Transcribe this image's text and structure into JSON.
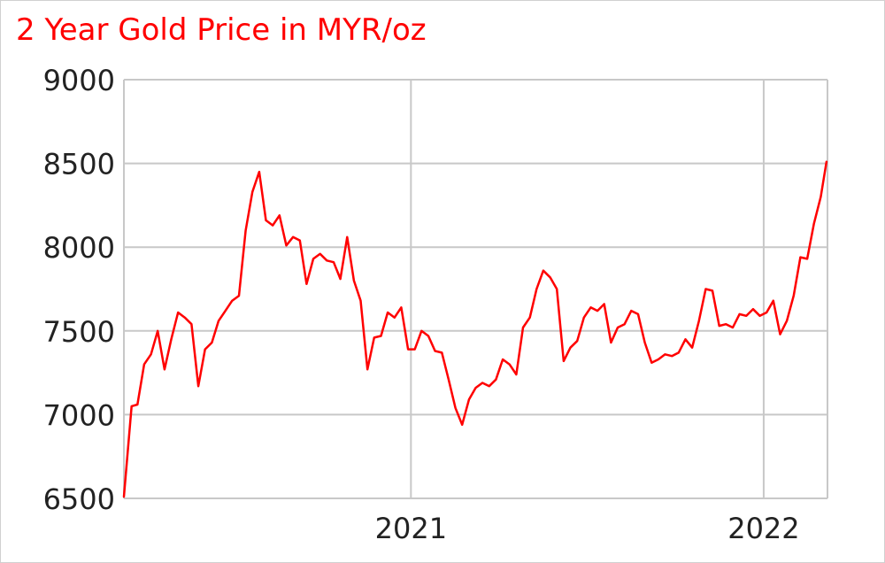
{
  "chart_data": {
    "type": "line",
    "title": "2 Year Gold Price in MYR/oz",
    "xlabel": "",
    "ylabel": "",
    "ylim": [
      6500,
      9000
    ],
    "yticks": [
      "6500",
      "7000",
      "7500",
      "8000",
      "8500",
      "9000"
    ],
    "xticks": [
      {
        "label": "2021",
        "value": "2021-01-01"
      },
      {
        "label": "2022",
        "value": "2022-01-01"
      }
    ],
    "xlim": [
      "2020-03-10",
      "2022-03-08"
    ],
    "grid": true,
    "color": "#ff0000",
    "series": [
      {
        "name": "",
        "x": [
          "2020-03-10",
          "2020-03-18",
          "2020-03-24",
          "2020-03-31",
          "2020-04-07",
          "2020-04-14",
          "2020-04-21",
          "2020-04-28",
          "2020-05-05",
          "2020-05-12",
          "2020-05-19",
          "2020-05-26",
          "2020-06-02",
          "2020-06-09",
          "2020-06-16",
          "2020-06-23",
          "2020-06-30",
          "2020-07-07",
          "2020-07-14",
          "2020-07-21",
          "2020-07-28",
          "2020-08-04",
          "2020-08-11",
          "2020-08-18",
          "2020-08-25",
          "2020-09-01",
          "2020-09-08",
          "2020-09-15",
          "2020-09-22",
          "2020-09-29",
          "2020-10-06",
          "2020-10-13",
          "2020-10-20",
          "2020-10-27",
          "2020-11-03",
          "2020-11-10",
          "2020-11-17",
          "2020-11-24",
          "2020-12-01",
          "2020-12-08",
          "2020-12-15",
          "2020-12-22",
          "2020-12-29",
          "2021-01-05",
          "2021-01-12",
          "2021-01-19",
          "2021-01-26",
          "2021-02-02",
          "2021-02-09",
          "2021-02-16",
          "2021-02-23",
          "2021-03-02",
          "2021-03-09",
          "2021-03-16",
          "2021-03-23",
          "2021-03-30",
          "2021-04-06",
          "2021-04-13",
          "2021-04-20",
          "2021-04-27",
          "2021-05-04",
          "2021-05-11",
          "2021-05-18",
          "2021-05-25",
          "2021-06-01",
          "2021-06-08",
          "2021-06-15",
          "2021-06-22",
          "2021-06-29",
          "2021-07-06",
          "2021-07-13",
          "2021-07-20",
          "2021-07-27",
          "2021-08-03",
          "2021-08-10",
          "2021-08-17",
          "2021-08-24",
          "2021-08-31",
          "2021-09-07",
          "2021-09-14",
          "2021-09-21",
          "2021-09-28",
          "2021-10-05",
          "2021-10-12",
          "2021-10-19",
          "2021-10-26",
          "2021-11-02",
          "2021-11-09",
          "2021-11-16",
          "2021-11-23",
          "2021-11-30",
          "2021-12-07",
          "2021-12-14",
          "2021-12-21",
          "2021-12-28",
          "2022-01-04",
          "2022-01-11",
          "2022-01-18",
          "2022-01-25",
          "2022-02-01",
          "2022-02-08",
          "2022-02-15",
          "2022-02-22",
          "2022-03-01",
          "2022-03-07"
        ],
        "y": [
          6510,
          7050,
          7060,
          7300,
          7360,
          7500,
          7270,
          7450,
          7610,
          7580,
          7540,
          7170,
          7390,
          7430,
          7560,
          7620,
          7680,
          7710,
          8100,
          8330,
          8450,
          8160,
          8130,
          8190,
          8010,
          8060,
          8040,
          7780,
          7930,
          7960,
          7920,
          7910,
          7810,
          8060,
          7800,
          7680,
          7270,
          7460,
          7470,
          7610,
          7580,
          7640,
          7390,
          7390,
          7500,
          7470,
          7380,
          7370,
          7210,
          7040,
          6940,
          7090,
          7160,
          7190,
          7170,
          7210,
          7330,
          7300,
          7240,
          7520,
          7580,
          7750,
          7860,
          7820,
          7750,
          7320,
          7400,
          7440,
          7580,
          7640,
          7620,
          7660,
          7430,
          7520,
          7540,
          7620,
          7600,
          7430,
          7310,
          7330,
          7360,
          7350,
          7370,
          7450,
          7400,
          7560,
          7750,
          7740,
          7530,
          7540,
          7520,
          7600,
          7590,
          7630,
          7590,
          7610,
          7680,
          7480,
          7560,
          7710,
          7940,
          7930,
          8140,
          8300,
          8510
        ]
      }
    ]
  }
}
